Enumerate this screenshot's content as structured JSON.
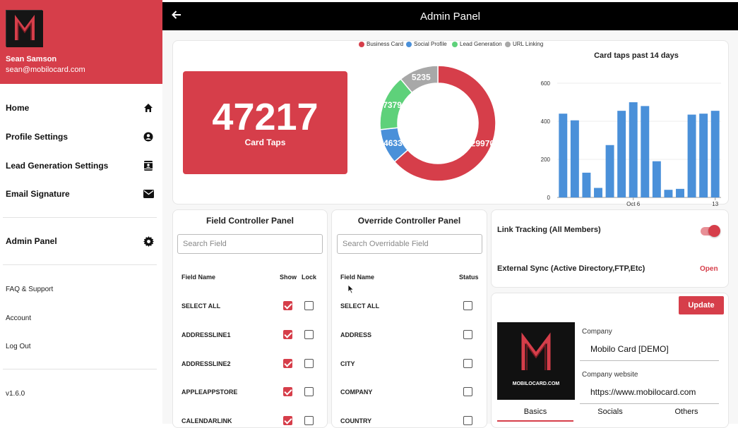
{
  "sidebar": {
    "user_name": "Sean Samson",
    "user_email": "sean@mobilocard.com",
    "nav": [
      {
        "label": "Home",
        "icon": "home-icon"
      },
      {
        "label": "Profile Settings",
        "icon": "account-circle-icon"
      },
      {
        "label": "Lead Generation Settings",
        "icon": "contact-card-icon"
      },
      {
        "label": "Email Signature",
        "icon": "mail-icon"
      }
    ],
    "admin": {
      "label": "Admin Panel",
      "icon": "gear-icon"
    },
    "sub": [
      "FAQ & Support",
      "Account",
      "Log Out"
    ],
    "version": "v1.6.0"
  },
  "topbar": {
    "title": "Admin Panel"
  },
  "stats": {
    "taps": "47217",
    "taps_label": "Card Taps"
  },
  "colors": {
    "accent": "#d63e4a",
    "blue": "#4a90d9",
    "green": "#5ed17a",
    "gray": "#a8a8a8"
  },
  "donut": {
    "legend": [
      "Business Card",
      "Social Profile",
      "Lead Generation",
      "URL Linking"
    ],
    "values": [
      29970,
      4633,
      7379,
      5235
    ],
    "labels": [
      "29970",
      "4633",
      "7379",
      "5235"
    ]
  },
  "chart_data": {
    "type": "bar",
    "title": "Card taps past 14 days",
    "values": [
      440,
      405,
      130,
      50,
      275,
      455,
      500,
      480,
      190,
      40,
      45,
      435,
      440,
      455
    ],
    "ylim": [
      0,
      600
    ],
    "yticks": [
      "0",
      "200",
      "400",
      "600"
    ],
    "xticks": [
      {
        "index": 6,
        "label": "Oct 6"
      },
      {
        "index": 13,
        "label": "13"
      }
    ]
  },
  "field_panel": {
    "title": "Field Controller Panel",
    "search_placeholder": "Search Field",
    "col_name": "Field Name",
    "col_show": "Show",
    "col_lock": "Lock",
    "rows": [
      {
        "name": "SELECT ALL",
        "show": true,
        "lock": false
      },
      {
        "name": "ADDRESSLINE1",
        "show": true,
        "lock": false
      },
      {
        "name": "ADDRESSLINE2",
        "show": true,
        "lock": false
      },
      {
        "name": "APPLEAPPSTORE",
        "show": true,
        "lock": false
      },
      {
        "name": "CALENDARLINK",
        "show": true,
        "lock": false
      }
    ]
  },
  "override_panel": {
    "title": "Override Controller Panel",
    "search_placeholder": "Search Overridable Field",
    "col_name": "Field Name",
    "col_status": "Status",
    "rows": [
      {
        "name": "SELECT ALL",
        "status": false
      },
      {
        "name": "ADDRESS",
        "status": false
      },
      {
        "name": "CITY",
        "status": false
      },
      {
        "name": "COMPANY",
        "status": false
      },
      {
        "name": "COUNTRY",
        "status": false
      }
    ]
  },
  "settings": {
    "link_tracking_label": "Link Tracking (All Members)",
    "link_tracking_on": true,
    "external_sync_label": "External Sync (Active Directory,FTP,Etc)",
    "external_sync_action": "Open"
  },
  "company": {
    "update_label": "Update",
    "logo_text": "MOBILOCARD.COM",
    "company_label": "Company",
    "company_value": "Mobilo Card [DEMO]",
    "website_label": "Company website",
    "website_value": "https://www.mobilocard.com",
    "tabs": [
      "Basics",
      "Socials",
      "Others"
    ]
  }
}
